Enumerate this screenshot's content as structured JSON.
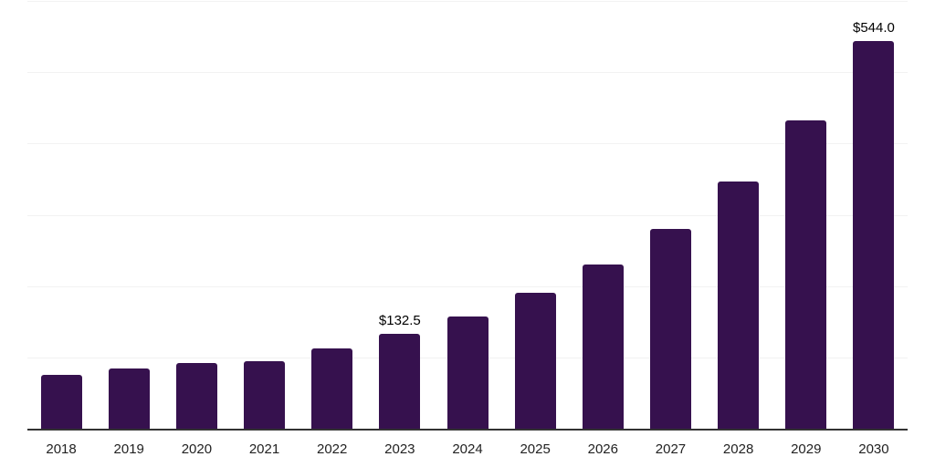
{
  "chart_data": {
    "type": "bar",
    "title": "",
    "xlabel": "",
    "ylabel": "",
    "categories": [
      "2018",
      "2019",
      "2020",
      "2021",
      "2022",
      "2023",
      "2024",
      "2025",
      "2026",
      "2027",
      "2028",
      "2029",
      "2030"
    ],
    "values": [
      75,
      84,
      92,
      95,
      112,
      132.5,
      158,
      190,
      230,
      280,
      347,
      433,
      544
    ],
    "annotations": [
      {
        "category": "2023",
        "label": "$132.5"
      },
      {
        "category": "2030",
        "label": "$544.0"
      }
    ],
    "ylim": [
      0,
      600
    ],
    "gridline_values": [
      100,
      200,
      300,
      400,
      500,
      600
    ],
    "grid": "horizontal",
    "legend_position": "none",
    "bar_color": "#36114e",
    "gridline_color": "#f2f2f2",
    "axis_line_color": "#333333",
    "tick_label_color": "#222222",
    "value_label_color": "#000000"
  }
}
